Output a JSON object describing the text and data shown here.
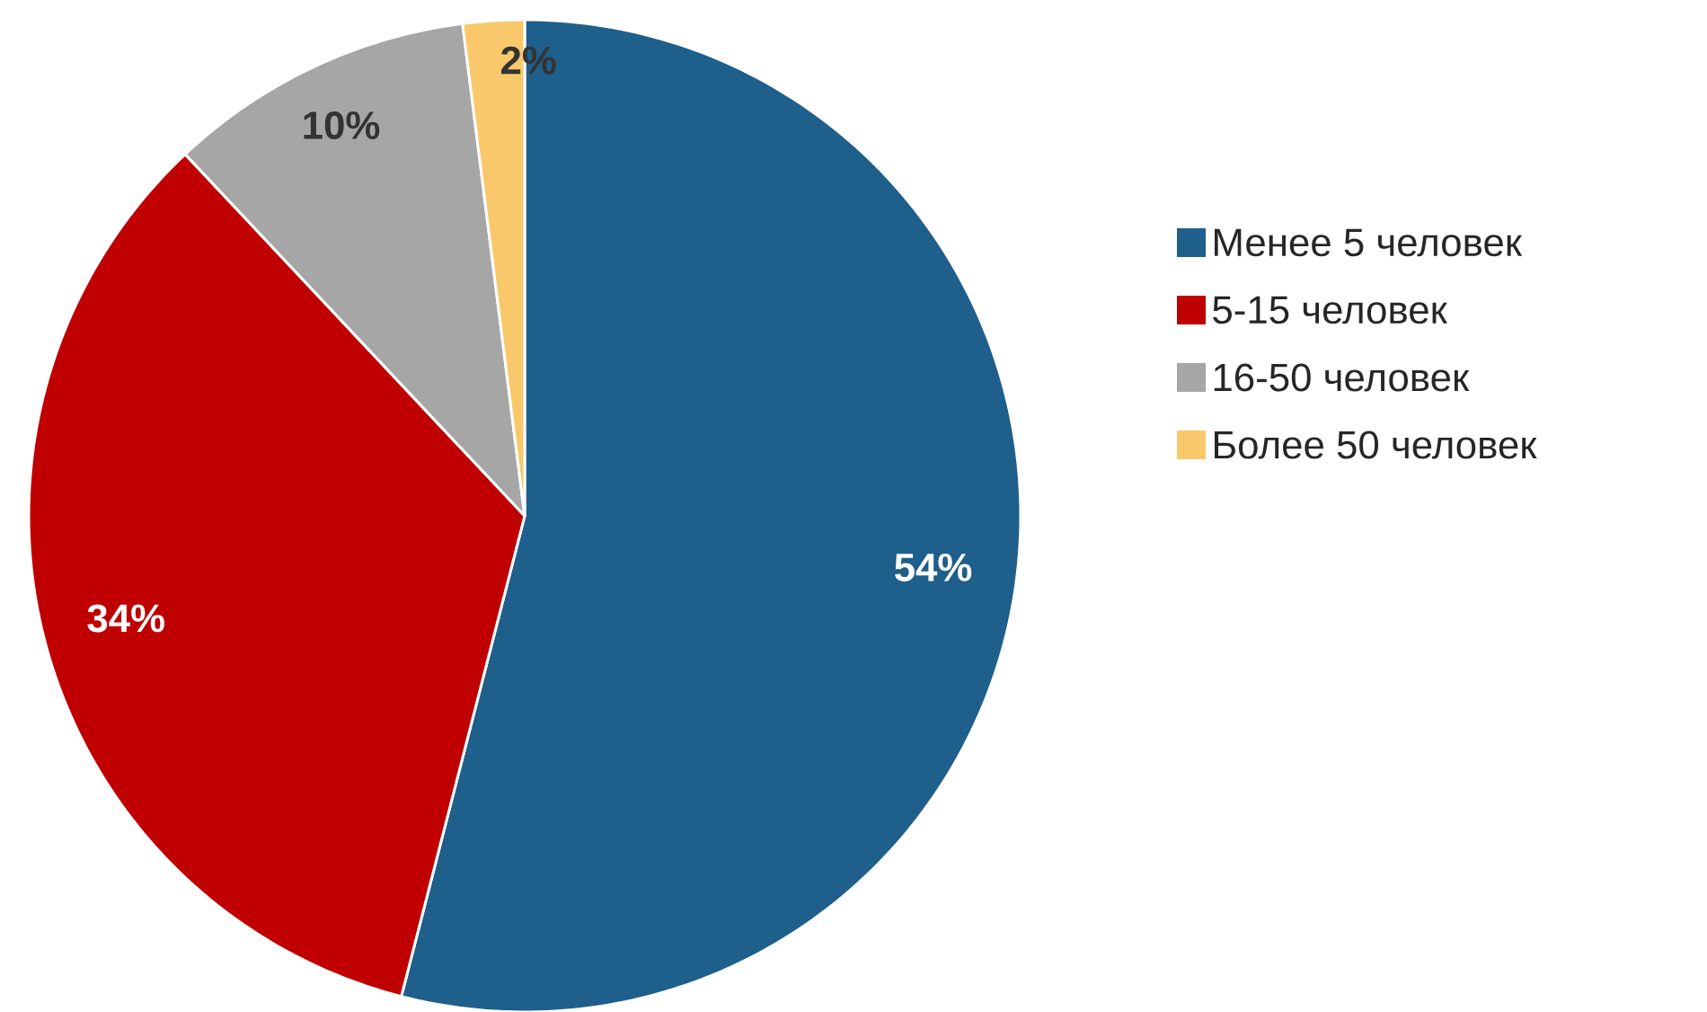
{
  "chart_data": {
    "type": "pie",
    "categories": [
      "Менее 5 человек",
      "5-15 человек",
      "16-50 человек",
      "Более 50 человек"
    ],
    "values": [
      54,
      34,
      10,
      2
    ],
    "colors": [
      "#1f5f8b",
      "#c00000",
      "#a6a6a6",
      "#f9c86a"
    ],
    "value_labels": [
      "54%",
      "34%",
      "10%",
      "2%"
    ],
    "legend": "right"
  }
}
